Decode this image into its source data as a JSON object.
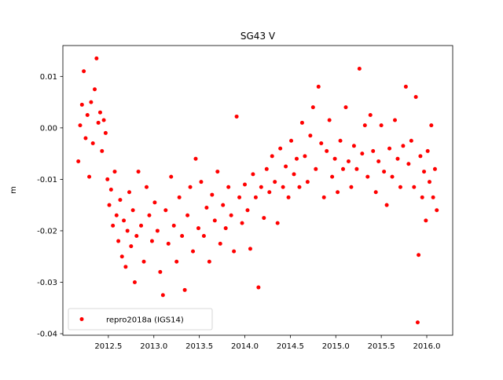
{
  "chart_data": {
    "type": "scatter",
    "title": "SG43 V",
    "y_label": "m",
    "x": [
      2012.17,
      2012.19,
      2012.21,
      2012.23,
      2012.25,
      2012.27,
      2012.29,
      2012.31,
      2012.33,
      2012.35,
      2012.37,
      2012.39,
      2012.41,
      2012.43,
      2012.45,
      2012.47,
      2012.49,
      2012.51,
      2012.53,
      2012.55,
      2012.57,
      2012.59,
      2012.61,
      2012.63,
      2012.65,
      2012.67,
      2012.69,
      2012.71,
      2012.73,
      2012.75,
      2012.77,
      2012.79,
      2012.81,
      2012.83,
      2012.86,
      2012.89,
      2012.92,
      2012.95,
      2012.98,
      2013.01,
      2013.04,
      2013.07,
      2013.1,
      2013.13,
      2013.16,
      2013.19,
      2013.22,
      2013.25,
      2013.28,
      2013.31,
      2013.34,
      2013.37,
      2013.4,
      2013.43,
      2013.46,
      2013.49,
      2013.52,
      2013.55,
      2013.58,
      2013.61,
      2013.64,
      2013.67,
      2013.7,
      2013.73,
      2013.76,
      2013.79,
      2013.82,
      2013.85,
      2013.88,
      2013.91,
      2013.94,
      2013.97,
      2014.0,
      2014.03,
      2014.06,
      2014.09,
      2014.12,
      2014.15,
      2014.18,
      2014.21,
      2014.24,
      2014.27,
      2014.3,
      2014.33,
      2014.36,
      2014.39,
      2014.42,
      2014.45,
      2014.48,
      2014.51,
      2014.54,
      2014.57,
      2014.6,
      2014.63,
      2014.66,
      2014.69,
      2014.72,
      2014.75,
      2014.78,
      2014.81,
      2014.84,
      2014.87,
      2014.9,
      2014.93,
      2014.96,
      2014.99,
      2015.02,
      2015.05,
      2015.08,
      2015.11,
      2015.14,
      2015.17,
      2015.2,
      2015.23,
      2015.26,
      2015.29,
      2015.32,
      2015.35,
      2015.38,
      2015.41,
      2015.44,
      2015.47,
      2015.5,
      2015.53,
      2015.56,
      2015.59,
      2015.62,
      2015.65,
      2015.68,
      2015.71,
      2015.74,
      2015.77,
      2015.8,
      2015.83,
      2015.86,
      2015.88,
      2015.9,
      2015.91,
      2015.93,
      2015.95,
      2015.97,
      2015.99,
      2016.01,
      2016.03,
      2016.05,
      2016.07,
      2016.09,
      2016.11
    ],
    "series": [
      {
        "name": "repro2018a (IGS14)",
        "color": "#ff0000",
        "values": [
          -0.0065,
          0.0005,
          0.0045,
          0.011,
          -0.002,
          0.0025,
          -0.0095,
          0.005,
          -0.003,
          0.0075,
          0.0135,
          0.001,
          0.003,
          -0.0045,
          0.0015,
          -0.001,
          -0.01,
          -0.015,
          -0.012,
          -0.019,
          -0.0085,
          -0.017,
          -0.022,
          -0.014,
          -0.025,
          -0.018,
          -0.027,
          -0.02,
          -0.0125,
          -0.023,
          -0.016,
          -0.03,
          -0.021,
          -0.0085,
          -0.019,
          -0.026,
          -0.0115,
          -0.017,
          -0.022,
          -0.0145,
          -0.02,
          -0.028,
          -0.0325,
          -0.016,
          -0.0225,
          -0.0095,
          -0.019,
          -0.026,
          -0.0135,
          -0.021,
          -0.0315,
          -0.017,
          -0.0115,
          -0.024,
          -0.006,
          -0.0195,
          -0.0105,
          -0.021,
          -0.0155,
          -0.026,
          -0.013,
          -0.018,
          -0.0085,
          -0.0225,
          -0.015,
          -0.0195,
          -0.0115,
          -0.017,
          -0.024,
          0.0022,
          -0.0135,
          -0.0185,
          -0.011,
          -0.016,
          -0.0235,
          -0.009,
          -0.0135,
          -0.031,
          -0.0115,
          -0.0175,
          -0.008,
          -0.0125,
          -0.0055,
          -0.0105,
          -0.0185,
          -0.004,
          -0.0115,
          -0.0075,
          -0.0135,
          -0.0025,
          -0.009,
          -0.006,
          -0.0115,
          0.001,
          -0.0055,
          -0.0105,
          -0.0015,
          0.004,
          -0.008,
          0.008,
          -0.003,
          -0.0135,
          -0.0045,
          0.0015,
          -0.0095,
          -0.006,
          -0.0125,
          -0.0025,
          -0.008,
          0.004,
          -0.0065,
          -0.0115,
          -0.0035,
          -0.008,
          0.0115,
          -0.005,
          0.0005,
          -0.0095,
          0.0025,
          -0.0045,
          -0.0125,
          -0.0065,
          0.0005,
          -0.0085,
          -0.015,
          -0.004,
          -0.0095,
          0.0015,
          -0.006,
          -0.0115,
          -0.0035,
          0.008,
          -0.007,
          -0.0025,
          -0.0115,
          0.006,
          -0.0378,
          -0.0247,
          -0.0055,
          -0.0135,
          -0.0085,
          -0.018,
          -0.0045,
          -0.0105,
          0.0005,
          -0.0135,
          -0.008,
          -0.016
        ]
      }
    ],
    "xlim": [
      2012.0,
      2016.285
    ],
    "ylim": [
      -0.0403,
      0.016
    ],
    "xticks": [
      2012.5,
      {
        "value": 2013.0,
        "label": "2013.0"
      },
      2013.5,
      {
        "value": 2014.0,
        "label": "2014.0"
      },
      2014.5,
      {
        "value": 2015.0,
        "label": "2015.0"
      },
      2015.5,
      {
        "value": 2016.0,
        "label": "2016.0"
      }
    ],
    "yticks": [
      -0.04,
      -0.03,
      -0.02,
      -0.01,
      {
        "value": 0,
        "label": "0.00"
      },
      0.01
    ],
    "legend": "lower left"
  }
}
